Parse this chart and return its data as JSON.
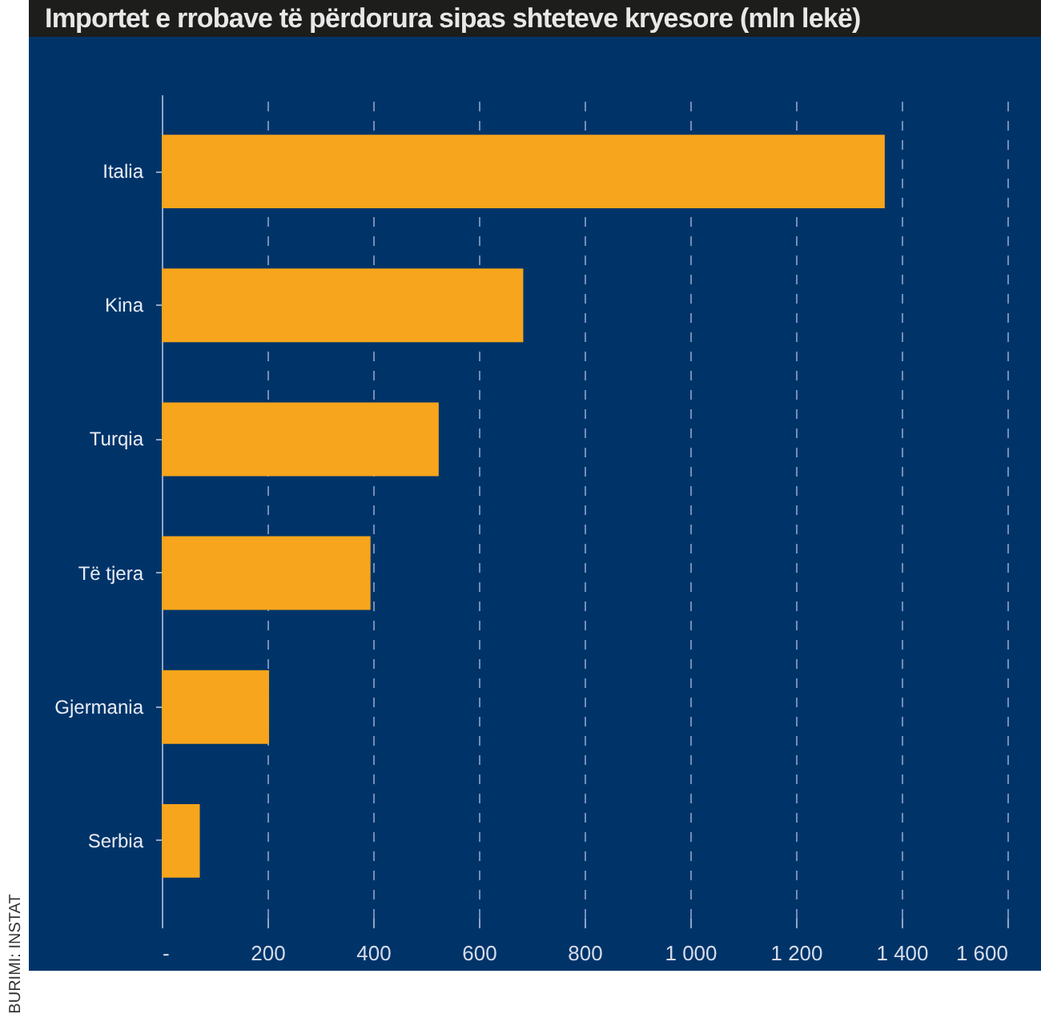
{
  "chart_data": {
    "type": "bar",
    "orientation": "horizontal",
    "title": "Importet e rrobave të përdorura sipas shteteve kryesore (mln lekë)",
    "annotations": [
      "BURIMI: INSTAT"
    ],
    "categories": [
      "Italia",
      "Kina",
      "Turqia",
      "Të tjera",
      "Gjermania",
      "Serbia"
    ],
    "values": [
      1368,
      684,
      524,
      395,
      203,
      72
    ],
    "color": "#f7a51c",
    "xlim": [
      0,
      1600
    ],
    "xticks": [
      {
        "value": 0,
        "label": "-"
      },
      200,
      400,
      600,
      800,
      {
        "value": 1000,
        "label": "1 000"
      },
      {
        "value": 1200,
        "label": "1 200"
      },
      {
        "value": 1400,
        "label": "1 400"
      },
      {
        "value": 1600,
        "label": "1 600"
      }
    ],
    "grid": "x"
  }
}
